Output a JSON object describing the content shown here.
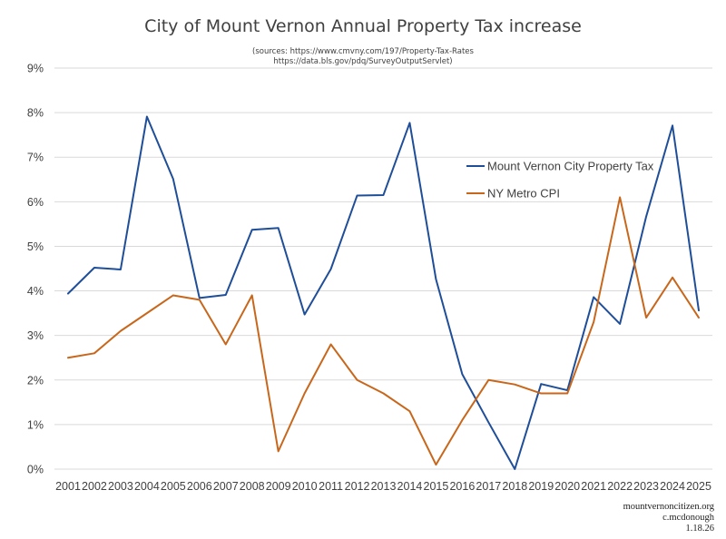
{
  "chart_data": {
    "type": "line",
    "title": "City of Mount Vernon Annual Property Tax increase",
    "sources": [
      "(sources: https://www.cmvny.com/197/Property-Tax-Rates",
      "https://data.bls.gov/pdq/SurveyOutputServlet)"
    ],
    "xlabel": "",
    "ylabel": "",
    "ylim": [
      0,
      9
    ],
    "grid": true,
    "legend_position": "right",
    "y_ticks": [
      "0%",
      "1%",
      "2%",
      "3%",
      "4%",
      "5%",
      "6%",
      "7%",
      "8%",
      "9%"
    ],
    "categories": [
      "2001",
      "2002",
      "2003",
      "2004",
      "2005",
      "2006",
      "2007",
      "2008",
      "2009",
      "2010",
      "2011",
      "2012",
      "2013",
      "2014",
      "2015",
      "2016",
      "2017",
      "2018",
      "2019",
      "2020",
      "2021",
      "2022",
      "2023",
      "2024",
      "2025"
    ],
    "series": [
      {
        "name": "Mount Vernon City Property Tax",
        "color": "#1f4e99",
        "values": [
          3.94,
          4.52,
          4.48,
          7.91,
          6.51,
          3.84,
          3.91,
          5.37,
          5.41,
          3.47,
          4.49,
          6.14,
          6.15,
          7.77,
          4.26,
          2.13,
          1.05,
          0.0,
          1.91,
          1.77,
          3.86,
          3.26,
          5.67,
          7.71,
          3.56
        ]
      },
      {
        "name": "NY Metro CPI",
        "color": "#c8671b",
        "values": [
          2.5,
          2.6,
          3.1,
          3.5,
          3.9,
          3.8,
          2.8,
          3.9,
          0.4,
          1.7,
          2.8,
          2.0,
          1.7,
          1.3,
          0.1,
          1.1,
          2.0,
          1.9,
          1.7,
          1.7,
          3.3,
          6.1,
          3.4,
          4.3,
          3.4
        ]
      }
    ]
  },
  "credits": [
    "mountvernoncitizen.org",
    "c.mcdonough",
    "1.18.26"
  ]
}
